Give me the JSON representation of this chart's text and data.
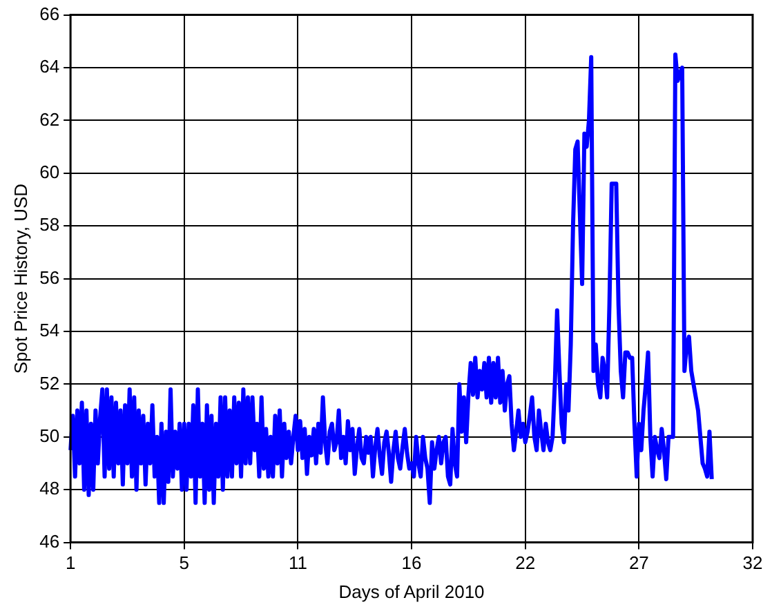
{
  "chart_data": {
    "type": "line",
    "xlabel": "Days of April 2010",
    "ylabel": "Spot Price History, USD",
    "categories": [
      "1",
      null,
      null,
      null,
      null,
      null,
      null,
      null,
      null,
      null,
      null,
      null,
      null,
      null,
      null,
      null,
      null,
      null,
      null,
      null,
      null,
      null,
      null,
      null,
      null,
      null,
      null,
      null,
      null,
      null,
      null,
      null,
      null,
      null,
      null,
      null,
      null,
      null,
      null,
      null,
      null,
      null,
      null,
      null,
      null,
      null,
      null,
      null,
      null,
      null,
      "5",
      null,
      null,
      null,
      null,
      null,
      null,
      null,
      null,
      null,
      null,
      null,
      null,
      null,
      null,
      null,
      null,
      null,
      null,
      null,
      null,
      null,
      null,
      null,
      null,
      null,
      null,
      null,
      null,
      null,
      null,
      null,
      null,
      null,
      null,
      null,
      null,
      null,
      null,
      null,
      null,
      null,
      null,
      null,
      null,
      null,
      null,
      null,
      null,
      null,
      "11",
      null,
      null,
      null,
      null,
      null,
      null,
      null,
      null,
      null,
      null,
      null,
      null,
      null,
      null,
      null,
      null,
      null,
      null,
      null,
      null,
      null,
      null,
      null,
      null,
      null,
      null,
      null,
      null,
      null,
      null,
      null,
      null,
      null,
      null,
      null,
      null,
      null,
      null,
      null,
      null,
      null,
      null,
      null,
      null,
      null,
      null,
      null,
      null,
      null,
      "16",
      null,
      null,
      null,
      null,
      null,
      null,
      null,
      null,
      null,
      null,
      null,
      null,
      null,
      null,
      null,
      null,
      null,
      null,
      null,
      null,
      null,
      null,
      null,
      null,
      null,
      null,
      null,
      null,
      null,
      null,
      null,
      null,
      null,
      null,
      null,
      null,
      null,
      null,
      null,
      null,
      null,
      null,
      null,
      null,
      null,
      null,
      null,
      null,
      null,
      "22",
      null,
      null,
      null,
      null,
      null,
      null,
      null,
      null,
      null,
      null,
      null,
      null,
      null,
      null,
      null,
      null,
      null,
      null,
      null,
      null,
      null,
      null,
      null,
      null,
      null,
      null,
      null,
      null,
      null,
      null,
      null,
      null,
      null,
      null,
      null,
      null,
      null,
      null,
      null,
      null,
      null,
      null,
      null,
      null,
      null,
      null,
      null,
      null,
      null,
      "27",
      null,
      null,
      null,
      null,
      null,
      null,
      null,
      null,
      null,
      null,
      null,
      null,
      null,
      null,
      null,
      null,
      null,
      null,
      null,
      null,
      null,
      null,
      null,
      null,
      null,
      null,
      null,
      null,
      null,
      null,
      null,
      null,
      null,
      null,
      null,
      null,
      null,
      null,
      null,
      null,
      null,
      null,
      null,
      null,
      null,
      null,
      null,
      null,
      null,
      "32"
    ],
    "ylim": [
      46,
      66
    ],
    "yticks": [
      46,
      48,
      50,
      52,
      54,
      56,
      58,
      60,
      62,
      64,
      66
    ],
    "grid": true,
    "marker": "none",
    "line_style": "solid",
    "series": [
      {
        "color": "#0000ff",
        "values": [
          49.5,
          50.8,
          48.5,
          51,
          49,
          51.3,
          48,
          51,
          47.8,
          50.5,
          48,
          51,
          49,
          50.7,
          51.8,
          48.5,
          51.8,
          48.8,
          51.5,
          48.5,
          51.3,
          49,
          51,
          48.2,
          51.2,
          49,
          51.8,
          48.5,
          51.5,
          48,
          51,
          49,
          50.8,
          48.2,
          50.5,
          49,
          51.2,
          48.5,
          50,
          47.5,
          50.5,
          47.5,
          50.2,
          48.3,
          51.8,
          48.5,
          50.2,
          48.8,
          50.5,
          48,
          50.5,
          48,
          50.5,
          48.5,
          51.2,
          47.5,
          51.8,
          48.5,
          50.5,
          47.5,
          51.2,
          48,
          50.8,
          47.5,
          50.5,
          48.5,
          51.5,
          48,
          51.5,
          48.5,
          51,
          48.5,
          51.5,
          49,
          51.3,
          48.5,
          51.8,
          49,
          51.5,
          49,
          51.5,
          49.5,
          50.5,
          48.5,
          51.5,
          48.8,
          50.3,
          48.5,
          50,
          48.5,
          50.8,
          49,
          51,
          48.5,
          50.5,
          49.2,
          50.2,
          49,
          50,
          50.8,
          49.5,
          50.6,
          49.2,
          50.3,
          48.6,
          50,
          49.3,
          50.3,
          49,
          50.5,
          49.4,
          51.5,
          49.8,
          49,
          50.2,
          50.5,
          49.5,
          49.8,
          51,
          49.2,
          50,
          49,
          50.6,
          49.5,
          50.3,
          48.6,
          49.6,
          50.3,
          49.2,
          49,
          50,
          49.4,
          50,
          48.5,
          49.6,
          50.3,
          49.3,
          48.6,
          49.8,
          50.2,
          49.4,
          48.3,
          49.5,
          50.2,
          49.2,
          48.8,
          49.6,
          50.3,
          49.4,
          48.8,
          49,
          48.5,
          50,
          49,
          48.5,
          50,
          49.2,
          48.8,
          47.5,
          49.8,
          48.8,
          49.5,
          50,
          49,
          49.8,
          50,
          48.5,
          48.2,
          50.3,
          49,
          48.5,
          52,
          50.2,
          51.5,
          49.8,
          51.6,
          52.8,
          51.6,
          53,
          51.5,
          52.5,
          51.8,
          52.8,
          51.5,
          53,
          51.3,
          52.8,
          51.5,
          53,
          51.3,
          52.5,
          51,
          52,
          52.3,
          50.5,
          49.5,
          50.2,
          51,
          50,
          50.5,
          49.8,
          50.2,
          50.8,
          51.5,
          50,
          49.5,
          51,
          50.2,
          49.5,
          50.5,
          49.8,
          49.5,
          50,
          52,
          54.8,
          52.5,
          50.5,
          49.8,
          52,
          51,
          53.5,
          58,
          60.9,
          61.2,
          58.5,
          55.8,
          61.5,
          61,
          62,
          64.4,
          52.5,
          53.5,
          52,
          51.5,
          53,
          52.5,
          51.5,
          55,
          59.6,
          59.6,
          59.6,
          55,
          52.5,
          51.5,
          53.2,
          53.2,
          53,
          53,
          50.5,
          48.5,
          50.5,
          49.5,
          51,
          52,
          53.2,
          50,
          48.5,
          50,
          49.5,
          49.2,
          50.3,
          49.5,
          48.4,
          50,
          50,
          50,
          64.5,
          63.5,
          63.8,
          64,
          52.5,
          53.5,
          53.8,
          52.5,
          52,
          51.5,
          51,
          50,
          49,
          48.8,
          48.5,
          50.2,
          48.4,
          null,
          null,
          null,
          null,
          null,
          null,
          null,
          null,
          null,
          null,
          null,
          null,
          null,
          null,
          null,
          null,
          null,
          null
        ]
      }
    ]
  }
}
